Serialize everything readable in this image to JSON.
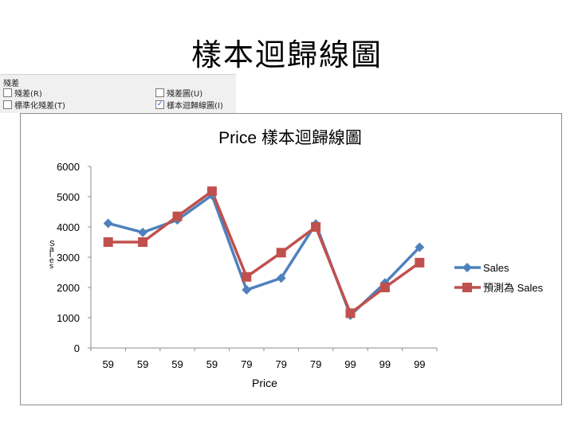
{
  "slide": {
    "title": "樣本迴歸線圖"
  },
  "residuals_panel": {
    "heading": "殘差",
    "options": [
      {
        "label": "殘差(R)",
        "checked": false
      },
      {
        "label": "標準化殘差(T)",
        "checked": false
      },
      {
        "label": "殘差圖(U)",
        "checked": false
      },
      {
        "label": "樣本迴歸線圖(I)",
        "checked": true
      }
    ]
  },
  "chart_data": {
    "type": "line",
    "title": "Price 樣本迴歸線圖",
    "xlabel": "Price",
    "ylabel": "Sales",
    "categories": [
      "59",
      "59",
      "59",
      "59",
      "79",
      "79",
      "79",
      "99",
      "99",
      "99"
    ],
    "series": [
      {
        "name": "Sales",
        "color": "#4f81bd",
        "marker": "diamond",
        "values": [
          4120,
          3820,
          4230,
          5050,
          1920,
          2310,
          4100,
          1080,
          2150,
          3330
        ]
      },
      {
        "name": "預測為 Sales",
        "color": "#c0504d",
        "marker": "square",
        "values": [
          3500,
          3500,
          4350,
          5180,
          2350,
          3150,
          4000,
          1150,
          2000,
          2820
        ]
      }
    ],
    "ylim": [
      0,
      6000
    ],
    "yticks": [
      "0",
      "1000",
      "2000",
      "3000",
      "4000",
      "5000",
      "6000"
    ],
    "grid": false,
    "legend_position": "right"
  }
}
